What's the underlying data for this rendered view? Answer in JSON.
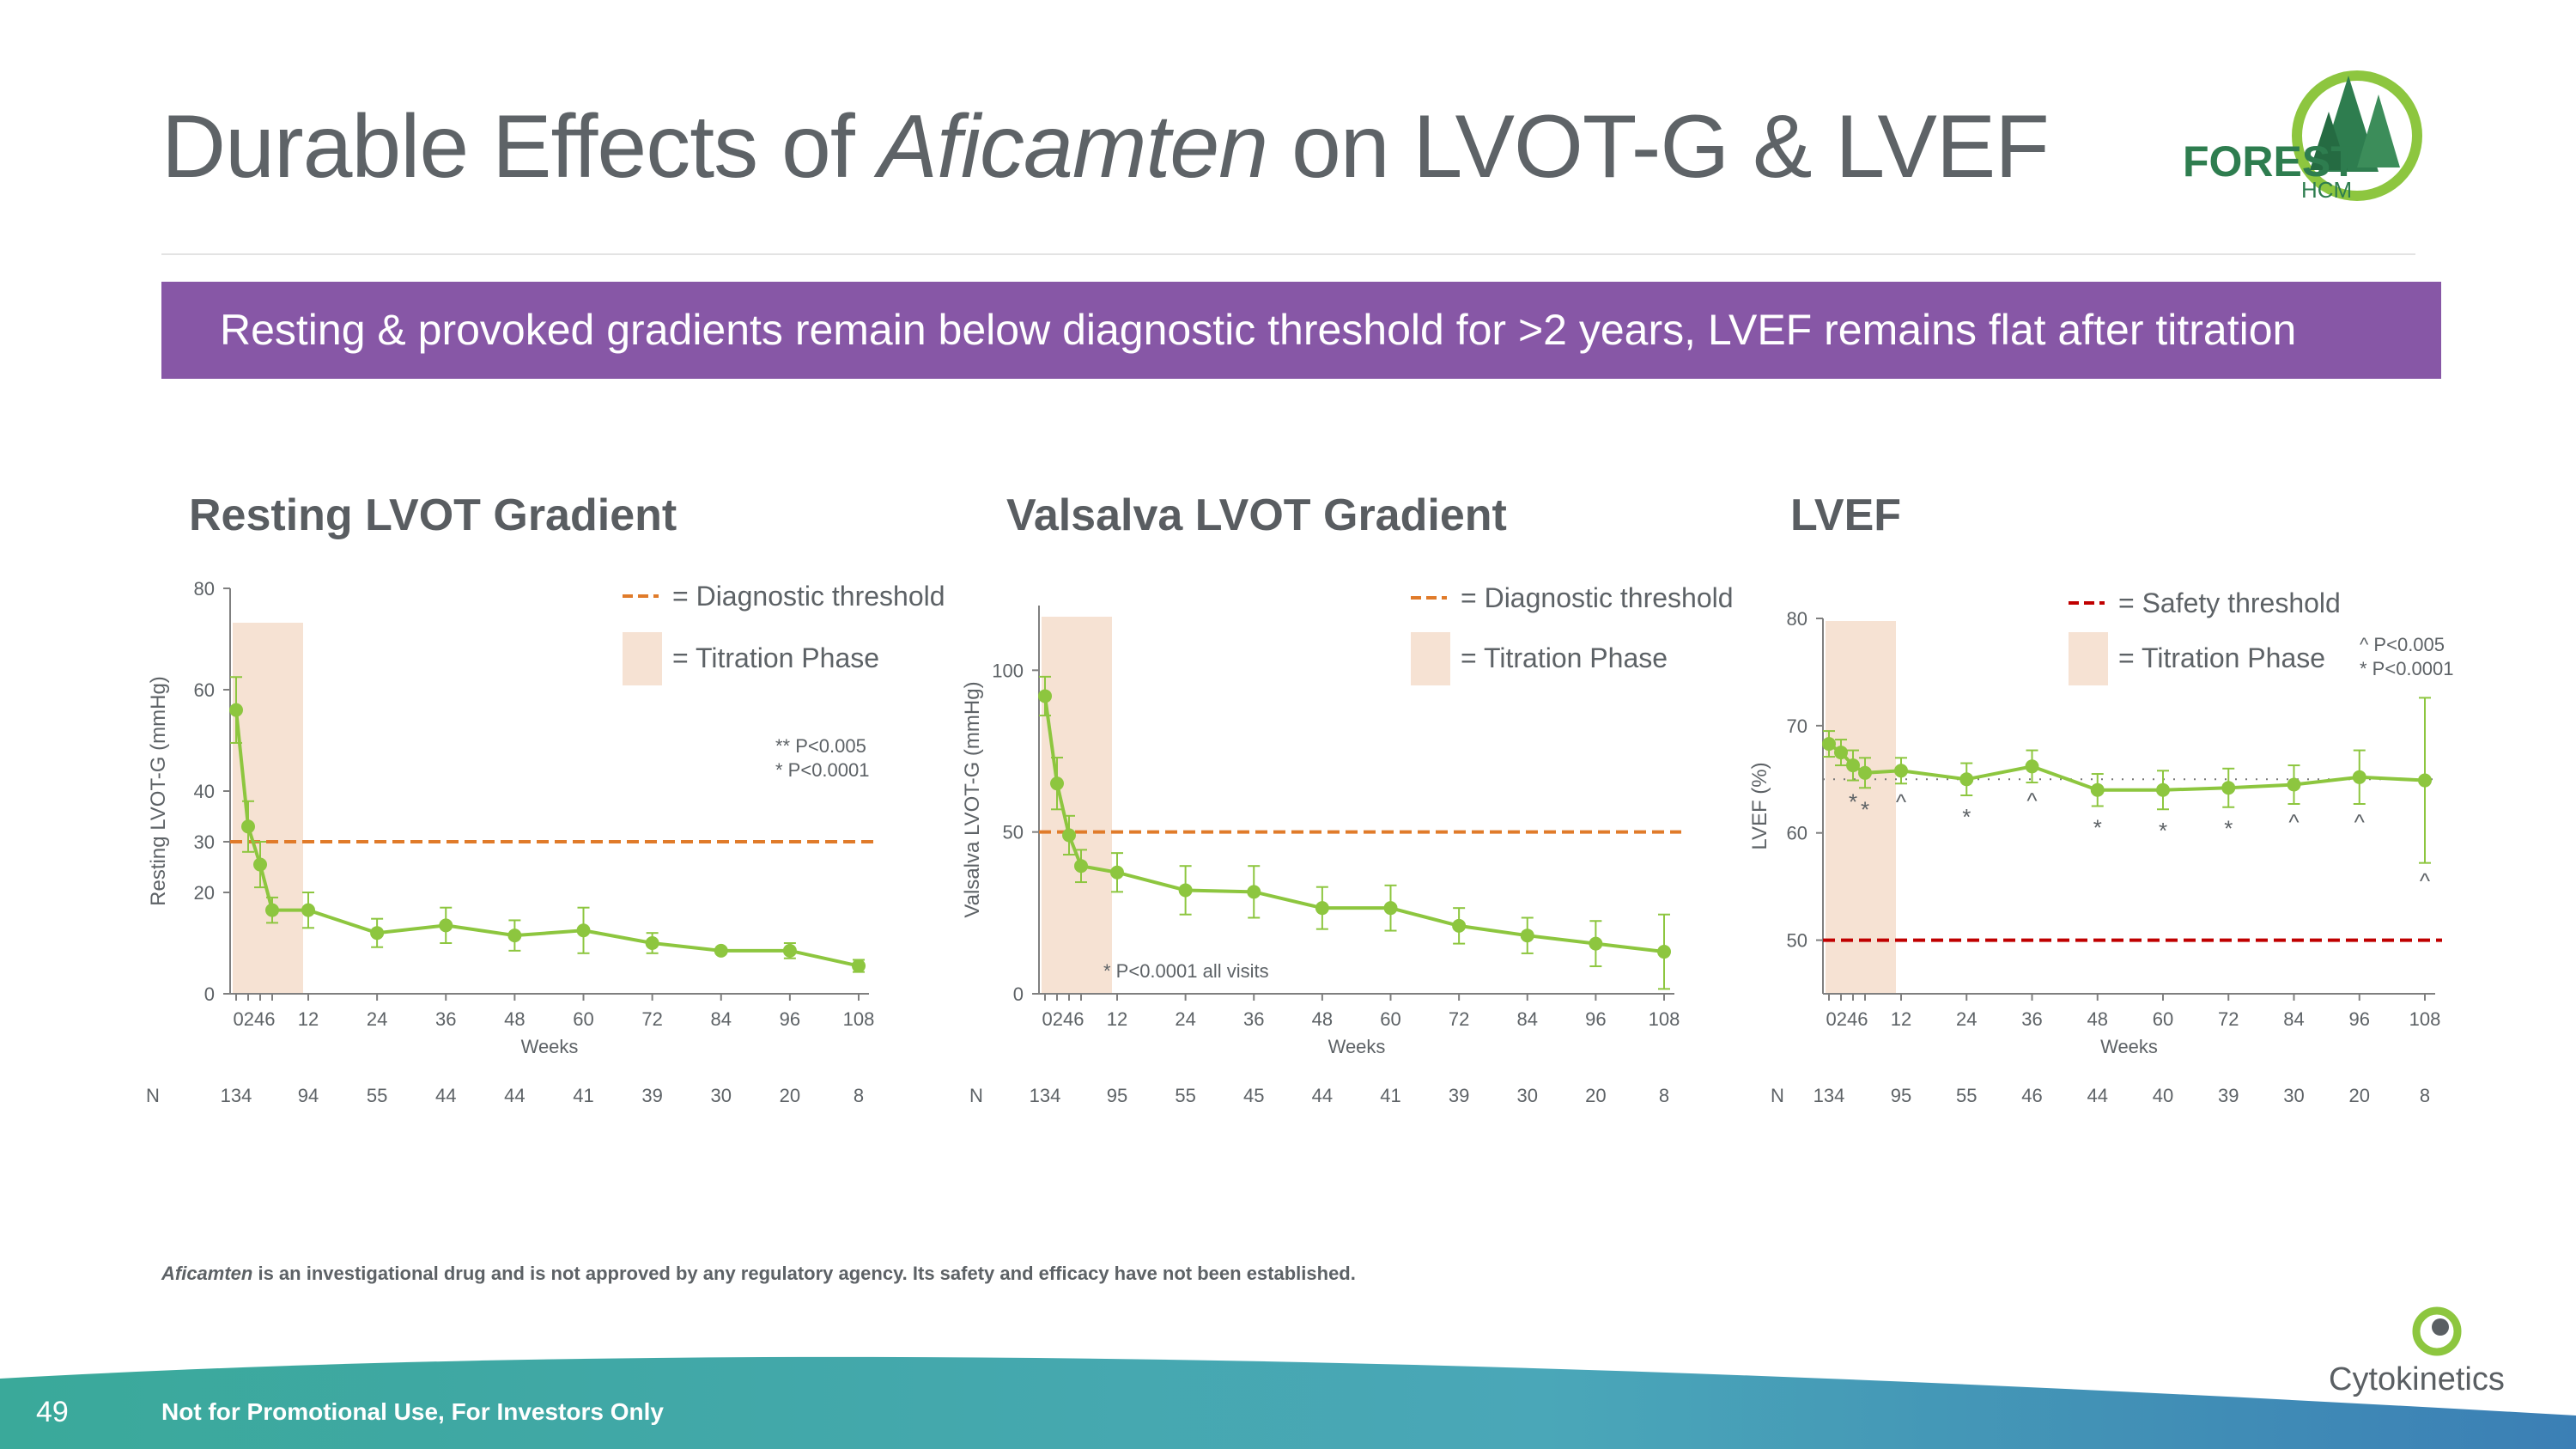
{
  "slide": {
    "title_pre": "Durable Effects of ",
    "title_drug": "Aficamten",
    "title_post": " on LVOT-G & LVEF",
    "banner": "Resting & provoked gradients remain below diagnostic threshold for >2 years, LVEF remains flat after titration",
    "footnote_drug": "Aficamten",
    "footnote_rest": " is an investigational drug and is not approved by any regulatory agency. Its safety and efficacy have not been established.",
    "page_number": "49",
    "footer_text": "Not for Promotional Use, For Investors Only",
    "company": "Cytokinetics",
    "logo_main": "FOREST",
    "logo_sub": "HCM"
  },
  "colors": {
    "series": "#8dc63f",
    "threshold_orange": "#e07b2a",
    "threshold_red": "#c00000",
    "titration_fill": "#f6e2d3",
    "banner": "#8757a6",
    "text": "#5d6266"
  },
  "chart_data": [
    {
      "type": "line",
      "title": "Resting LVOT Gradient",
      "ylabel": "Resting LVOT-G (mmHg)",
      "xlabel": "Weeks",
      "ylim": [
        0,
        80
      ],
      "yticks": [
        0,
        20,
        30,
        40,
        60,
        80
      ],
      "x": [
        0,
        2,
        4,
        6,
        12,
        24,
        36,
        48,
        60,
        72,
        84,
        96,
        108
      ],
      "x_tick_labels": [
        "0246",
        "12",
        "24",
        "36",
        "48",
        "60",
        "72",
        "84",
        "96",
        "108"
      ],
      "values": [
        56,
        33,
        25.5,
        16.5,
        16.5,
        12,
        13.5,
        11.5,
        12.5,
        10,
        8.5,
        8.5,
        5.5
      ],
      "error": [
        6.5,
        5,
        4.5,
        2.5,
        3.5,
        2.8,
        3.5,
        3,
        4.5,
        2,
        0,
        1.5,
        1.2
      ],
      "threshold": 30,
      "titration_weeks": [
        0,
        10
      ],
      "legend": [
        "= Diagnostic threshold",
        "= Titration Phase"
      ],
      "annotations": [
        "** P<0.005",
        "* P<0.0001"
      ],
      "n_label": "N",
      "n_values": [
        "134",
        "94",
        "55",
        "44",
        "44",
        "41",
        "39",
        "30",
        "20",
        "8"
      ]
    },
    {
      "type": "line",
      "title": "Valsalva LVOT Gradient",
      "ylabel": "Valsalva LVOT-G (mmHg)",
      "xlabel": "Weeks",
      "ylim": [
        0,
        120
      ],
      "yticks": [
        0,
        50,
        100
      ],
      "x": [
        0,
        2,
        4,
        6,
        12,
        24,
        36,
        48,
        60,
        72,
        84,
        96,
        108
      ],
      "x_tick_labels": [
        "0246",
        "12",
        "24",
        "36",
        "48",
        "60",
        "72",
        "84",
        "96",
        "108"
      ],
      "values": [
        92,
        65,
        49,
        39.5,
        37.5,
        32,
        31.5,
        26.5,
        26.5,
        21,
        18,
        15.5,
        13
      ],
      "error": [
        6,
        8,
        6,
        5,
        6,
        7.5,
        8,
        6.5,
        7,
        5.5,
        5.5,
        7,
        11.5
      ],
      "threshold": 50,
      "titration_weeks": [
        0,
        10
      ],
      "legend": [
        "= Diagnostic threshold",
        "= Titration Phase"
      ],
      "annotations": [
        "* P<0.0001 all visits"
      ],
      "n_label": "N",
      "n_values": [
        "134",
        "95",
        "55",
        "45",
        "44",
        "41",
        "39",
        "30",
        "20",
        "8"
      ]
    },
    {
      "type": "line",
      "title": "LVEF",
      "ylabel": "LVEF (%)",
      "xlabel": "Weeks",
      "ylim": [
        45,
        80
      ],
      "yticks": [
        50,
        60,
        70,
        80
      ],
      "x": [
        0,
        2,
        4,
        6,
        12,
        24,
        36,
        48,
        60,
        72,
        84,
        96,
        108
      ],
      "x_tick_labels": [
        "0246",
        "12",
        "24",
        "36",
        "48",
        "60",
        "72",
        "84",
        "96",
        "108"
      ],
      "values": [
        68.3,
        67.5,
        66.3,
        65.6,
        65.8,
        65.0,
        66.2,
        64.0,
        64.0,
        64.2,
        64.5,
        65.2,
        64.9
      ],
      "error": [
        1.2,
        1.2,
        1.4,
        1.4,
        1.2,
        1.5,
        1.5,
        1.5,
        1.8,
        1.8,
        1.8,
        2.5,
        7.7
      ],
      "markers": [
        "",
        "",
        "*",
        "*",
        "^",
        "*",
        "^",
        "*",
        "*",
        "*",
        "^",
        "^",
        "^"
      ],
      "baseline_ref": 65,
      "threshold": 50,
      "titration_weeks": [
        0,
        10
      ],
      "legend": [
        "= Safety threshold",
        "= Titration Phase"
      ],
      "annotations": [
        "^ P<0.005",
        "* P<0.0001"
      ],
      "n_label": "N",
      "n_values": [
        "134",
        "95",
        "55",
        "46",
        "44",
        "40",
        "39",
        "30",
        "20",
        "8"
      ]
    }
  ]
}
